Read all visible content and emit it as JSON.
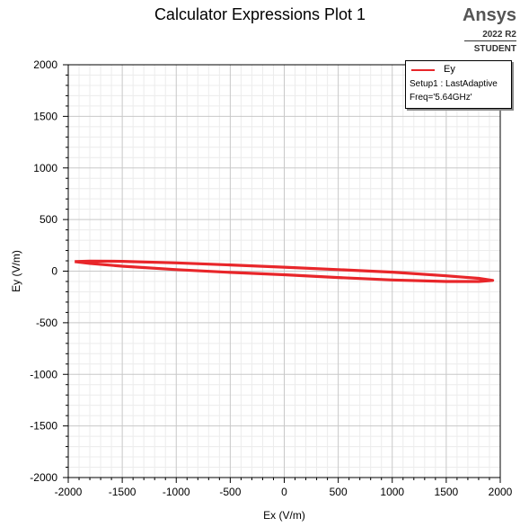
{
  "header": {
    "title": "Calculator Expressions Plot 1",
    "brand": "Ansys",
    "version": "2022 R2",
    "edition": "STUDENT"
  },
  "legend": {
    "series_name": "Ey",
    "setup": "Setup1 : LastAdaptive",
    "freq": "Freq='5.64GHz'"
  },
  "colors": {
    "series": "#e8262a",
    "grid_major": "#c8c8c8",
    "grid_minor": "#ececec"
  },
  "chart_data": {
    "type": "line",
    "title": "Calculator Expressions Plot 1",
    "xlabel": "Ex (V/m)",
    "ylabel": "Ey (V/m)",
    "xlim": [
      -2000,
      2000
    ],
    "ylim": [
      -2000,
      2000
    ],
    "xticks": [
      -2000,
      -1500,
      -1000,
      -500,
      0,
      500,
      1000,
      1500,
      2000
    ],
    "yticks": [
      -2000,
      -1500,
      -1000,
      -500,
      0,
      500,
      1000,
      1500,
      2000
    ],
    "grid": true,
    "legend_position": "top-right",
    "series": [
      {
        "name": "Ey",
        "x": [
          -1940,
          -1800,
          -1500,
          -1000,
          -500,
          0,
          500,
          1000,
          1500,
          1800,
          1930,
          1800,
          1500,
          1000,
          500,
          0,
          -500,
          -1000,
          -1500,
          -1800,
          -1940
        ],
        "y": [
          92,
          98,
          95,
          80,
          60,
          38,
          15,
          -10,
          -45,
          -70,
          -90,
          -100,
          -100,
          -85,
          -62,
          -35,
          -12,
          15,
          48,
          75,
          92
        ]
      }
    ]
  }
}
